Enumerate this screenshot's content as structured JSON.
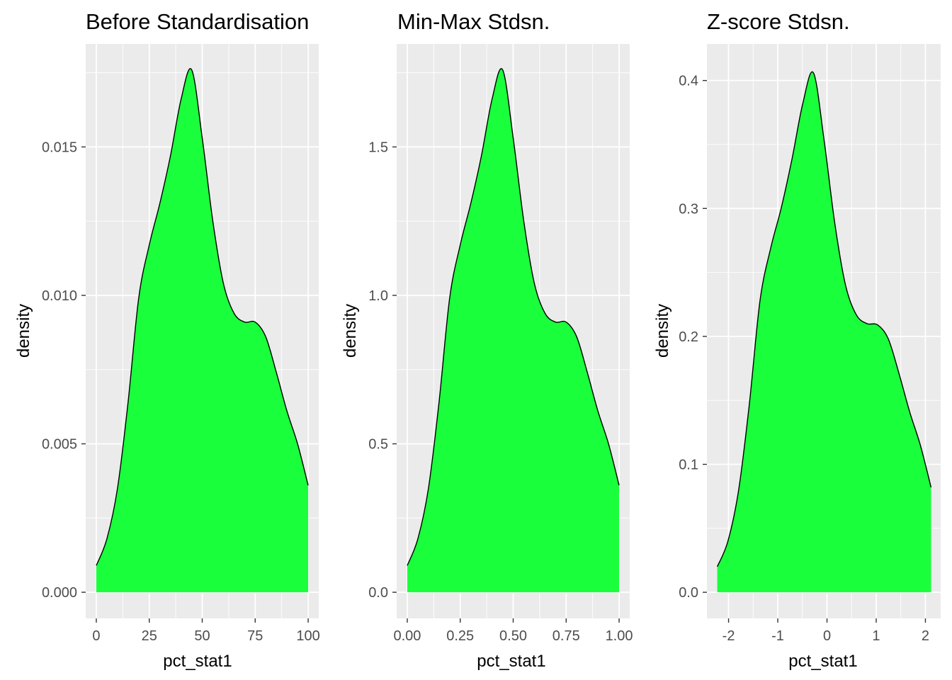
{
  "figure": {
    "fill_color": "#1aff3b",
    "outline_color": "#000000",
    "panel_background": "#ebebeb",
    "grid_color": "#ffffff"
  },
  "chart_data": [
    {
      "type": "area",
      "title": "Before Standardisation",
      "xlabel": "pct_stat1",
      "ylabel": "density",
      "xlim": [
        -5,
        105
      ],
      "ylim": [
        -0.00088,
        0.01847
      ],
      "xticks": [
        0,
        25,
        50,
        75,
        100
      ],
      "xtick_labels": [
        "0",
        "25",
        "50",
        "75",
        "100"
      ],
      "yticks": [
        0,
        0.005,
        0.01,
        0.015
      ],
      "ytick_labels": [
        "0.000",
        "0.005",
        "0.010",
        "0.015"
      ],
      "grid": true,
      "series": [
        {
          "x": [
            0,
            5,
            10,
            15,
            20,
            25,
            30,
            35,
            40,
            45,
            50,
            55,
            60,
            65,
            70,
            75,
            80,
            85,
            90,
            95,
            100
          ],
          "y": [
            0.0009,
            0.0018,
            0.0035,
            0.0064,
            0.0099,
            0.0117,
            0.0131,
            0.0147,
            0.0166,
            0.0176,
            0.0153,
            0.0125,
            0.0104,
            0.0094,
            0.0091,
            0.0091,
            0.0086,
            0.0074,
            0.0061,
            0.005,
            0.0036
          ]
        }
      ]
    },
    {
      "type": "area",
      "title": "Min-Max Stdsn.",
      "xlabel": "pct_stat1",
      "ylabel": "density",
      "xlim": [
        -0.05,
        1.05
      ],
      "ylim": [
        -0.088,
        1.847
      ],
      "xticks": [
        0,
        0.25,
        0.5,
        0.75,
        1
      ],
      "xtick_labels": [
        "0.00",
        "0.25",
        "0.50",
        "0.75",
        "1.00"
      ],
      "yticks": [
        0,
        0.5,
        1,
        1.5
      ],
      "ytick_labels": [
        "0.0",
        "0.5",
        "1.0",
        "1.5"
      ],
      "grid": true,
      "series": [
        {
          "x": [
            0,
            0.05,
            0.1,
            0.15,
            0.2,
            0.25,
            0.3,
            0.35,
            0.4,
            0.45,
            0.5,
            0.55,
            0.6,
            0.65,
            0.7,
            0.75,
            0.8,
            0.85,
            0.9,
            0.95,
            1
          ],
          "y": [
            0.09,
            0.18,
            0.35,
            0.64,
            0.99,
            1.17,
            1.31,
            1.47,
            1.66,
            1.76,
            1.53,
            1.25,
            1.04,
            0.94,
            0.91,
            0.91,
            0.86,
            0.74,
            0.61,
            0.5,
            0.36
          ]
        }
      ]
    },
    {
      "type": "area",
      "title": "Z-score Stdsn.",
      "xlabel": "pct_stat1",
      "ylabel": "density",
      "xlim": [
        -2.44,
        2.31
      ],
      "ylim": [
        -0.0204,
        0.4286
      ],
      "xticks": [
        -2,
        -1,
        0,
        1,
        2
      ],
      "xtick_labels": [
        "-2",
        "-1",
        "0",
        "1",
        "2"
      ],
      "yticks": [
        0,
        0.1,
        0.2,
        0.3,
        0.4
      ],
      "ytick_labels": [
        "0.0",
        "0.1",
        "0.2",
        "0.3",
        "0.4"
      ],
      "grid": true,
      "series": [
        {
          "x": [
            -2.23,
            -2.013,
            -1.795,
            -1.578,
            -1.361,
            -1.144,
            -0.926,
            -0.709,
            -0.492,
            -0.275,
            -0.058,
            0.16,
            0.377,
            0.594,
            0.811,
            1.029,
            1.246,
            1.463,
            1.68,
            1.897,
            2.115
          ],
          "y": [
            0.02,
            0.04,
            0.08,
            0.147,
            0.228,
            0.269,
            0.301,
            0.339,
            0.382,
            0.406,
            0.353,
            0.288,
            0.24,
            0.217,
            0.21,
            0.209,
            0.198,
            0.171,
            0.141,
            0.115,
            0.082
          ]
        }
      ]
    }
  ]
}
